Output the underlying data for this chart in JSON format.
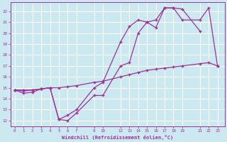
{
  "xlabel": "Windchill (Refroidissement éolien,°C)",
  "bg_color": "#cce8f0",
  "grid_color": "#ffffff",
  "line_color": "#993399",
  "x_ticks": [
    0,
    1,
    2,
    3,
    4,
    5,
    6,
    7,
    9,
    10,
    12,
    13,
    14,
    15,
    16,
    17,
    18,
    19,
    21,
    22,
    23
  ],
  "xlim": [
    -0.5,
    23.8
  ],
  "ylim": [
    11.5,
    22.8
  ],
  "y_ticks": [
    12,
    13,
    14,
    15,
    16,
    17,
    18,
    19,
    20,
    21,
    22
  ],
  "line1_x": [
    0,
    1,
    2,
    3,
    4,
    5,
    6,
    7,
    9,
    10,
    12,
    13,
    14,
    15,
    16,
    17,
    18,
    19,
    21,
    22,
    23
  ],
  "line1_y": [
    14.8,
    14.8,
    14.8,
    14.9,
    15.0,
    15.0,
    15.1,
    15.2,
    15.5,
    15.6,
    16.0,
    16.2,
    16.4,
    16.6,
    16.7,
    16.8,
    16.9,
    17.0,
    17.2,
    17.3,
    17.0
  ],
  "line2_x": [
    0,
    1,
    2,
    3,
    4,
    5,
    6,
    7,
    9,
    10,
    12,
    13,
    14,
    15,
    16,
    17,
    18,
    19,
    21,
    22,
    23
  ],
  "line2_y": [
    14.8,
    14.7,
    14.8,
    14.9,
    15.0,
    12.1,
    12.0,
    12.7,
    14.3,
    14.3,
    17.0,
    17.3,
    20.0,
    21.0,
    20.5,
    22.3,
    22.3,
    21.2,
    21.2,
    22.3,
    17.0
  ],
  "line3_x": [
    0,
    1,
    2,
    3,
    4,
    5,
    6,
    7,
    9,
    10,
    12,
    13,
    14,
    15,
    16,
    17,
    18,
    19,
    21
  ],
  "line3_y": [
    14.8,
    14.5,
    14.6,
    14.9,
    15.0,
    12.1,
    12.5,
    13.0,
    15.0,
    15.5,
    19.2,
    20.6,
    21.2,
    21.0,
    21.2,
    22.3,
    22.3,
    22.2,
    20.2
  ]
}
